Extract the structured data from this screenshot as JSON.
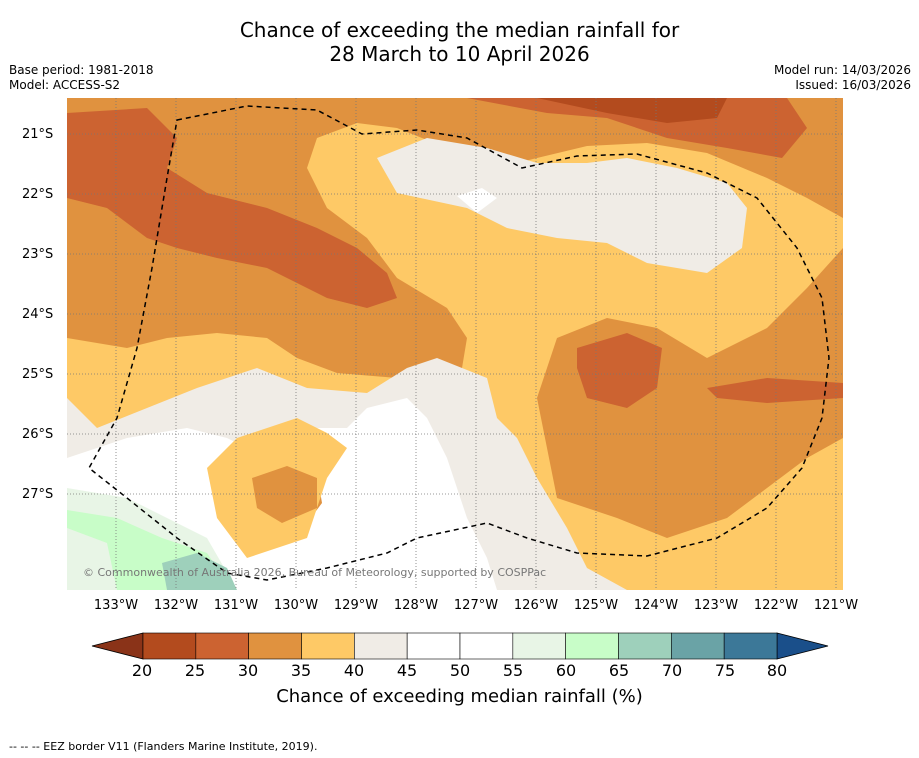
{
  "title": {
    "line1": "Chance of exceeding the median rainfall for",
    "line2": "28 March to 10 April 2026"
  },
  "meta": {
    "base_period": "Base period: 1981-2018",
    "model": "Model: ACCESS-S2",
    "model_run": "Model run: 14/03/2026",
    "issued": "Issued: 16/03/2026"
  },
  "map": {
    "lat_labels": [
      "21°S",
      "22°S",
      "23°S",
      "24°S",
      "25°S",
      "26°S",
      "27°S"
    ],
    "lon_labels": [
      "133°W",
      "132°W",
      "131°W",
      "130°W",
      "129°W",
      "128°W",
      "127°W",
      "126°W",
      "125°W",
      "124°W",
      "123°W",
      "122°W",
      "121°W"
    ],
    "copyright": "© Commonwealth of Australia 2026, Bureau of Meteorology, supported by COSPPac",
    "lat_values": [
      -21,
      -22,
      -23,
      -24,
      -25,
      -26,
      -27
    ],
    "lon_values": [
      -133,
      -132,
      -131,
      -130,
      -129,
      -128,
      -127,
      -126,
      -125,
      -124,
      -123,
      -122,
      -121
    ],
    "extent": {
      "lon_min": -133.8,
      "lon_max": -120.9,
      "lat_min": -28.6,
      "lat_max": -20.4
    }
  },
  "colorbar": {
    "ticks": [
      "20",
      "25",
      "30",
      "35",
      "40",
      "45",
      "50",
      "55",
      "60",
      "65",
      "70",
      "75",
      "80"
    ],
    "colors": [
      "#b34b1e",
      "#cc6331",
      "#e0923f",
      "#fec966",
      "#f0ece6",
      "#ffffff",
      "#ffffff",
      "#e8f5e6",
      "#c8fdc8",
      "#9ed0bb",
      "#6aa3a6",
      "#3c7898"
    ],
    "low_extend_color": "#8a3318",
    "high_extend_color": "#1a4f8a",
    "title": "Chance of exceeding median rainfall (%)"
  },
  "footnote": "--  --  -- EEZ border V11 (Flanders Marine Institute, 2019)."
}
